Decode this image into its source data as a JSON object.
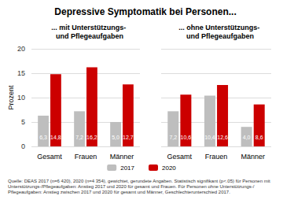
{
  "title": "Depressive Symptomatik bei Personen...",
  "note": "Quelle: DEAS 2017 (n=6 420), 2020 (n=4 354), gewichtet, gerundete Angaben. Statistisch signifikant (p<.05) für Personen mit Unterstützungs-/Pflegeaufgaben: Anstieg 2017 und 2020 für gesamt und Frauen. Für Personen ohne Unterstützungs-/Pflegeaufgaben: Anstieg zwischen 2017 und 2020 für gesamt und Männer, Geschlechterunterschied 2017.",
  "chart_data": [
    {
      "type": "bar",
      "title": "... mit Unterstützungs- und Pflegeaufgaben",
      "y_label": "Prozent",
      "categories": [
        "Gesamt",
        "Frauen",
        "Männer"
      ],
      "series": [
        {
          "name": "2017",
          "color": "#bebebe",
          "values": [
            6.3,
            7.2,
            5.0
          ],
          "value_labels": [
            "6,3",
            "7,2",
            "5,0"
          ]
        },
        {
          "name": "2020",
          "color": "#cc0000",
          "values": [
            14.8,
            16.2,
            12.7
          ],
          "value_labels": [
            "14,8",
            "16,2",
            "12,7"
          ]
        }
      ],
      "ylim": [
        0,
        20
      ],
      "yticks": [
        0,
        5,
        10,
        15,
        20
      ],
      "grid": true,
      "data_labels": true,
      "legend": "bottom"
    },
    {
      "type": "bar",
      "title": "... ohne Unterstützungs- und Pflegeaufgaben",
      "categories": [
        "Gesamt",
        "Frauen",
        "Männer"
      ],
      "series": [
        {
          "name": "2017",
          "color": "#bebebe",
          "values": [
            7.2,
            10.4,
            4.0
          ],
          "value_labels": [
            "7,2",
            "10,4",
            "4,0"
          ]
        },
        {
          "name": "2020",
          "color": "#cc0000",
          "values": [
            10.6,
            12.6,
            8.6
          ],
          "value_labels": [
            "10,6",
            "12,6",
            "8,6"
          ]
        }
      ],
      "ylim": [
        0,
        20
      ],
      "yticks": [
        0,
        5,
        10,
        15,
        20
      ],
      "grid": true,
      "data_labels": true,
      "tick_labels": "x"
    }
  ]
}
